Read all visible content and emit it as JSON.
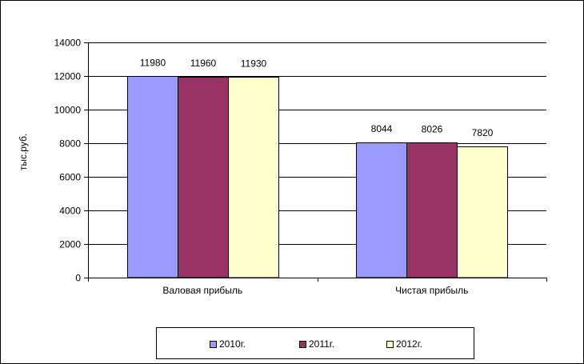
{
  "chart_data": {
    "type": "bar",
    "categories": [
      "Валовая прибыль",
      "Чистая прибыль"
    ],
    "series": [
      {
        "name": "2010г.",
        "values": [
          11980,
          8044
        ],
        "color": "#9999ff"
      },
      {
        "name": "2011г.",
        "values": [
          11960,
          8026
        ],
        "color": "#993366"
      },
      {
        "name": "2012г.",
        "values": [
          11930,
          7820
        ],
        "color": "#ffffcc"
      }
    ],
    "ylabel": "тыс.руб.",
    "ylim": [
      0,
      14000
    ],
    "yticks": [
      "0",
      "2000",
      "4000",
      "6000",
      "8000",
      "10000",
      "12000",
      "14000"
    ],
    "grid": true,
    "legend_position": "bottom",
    "data_labels": true
  }
}
